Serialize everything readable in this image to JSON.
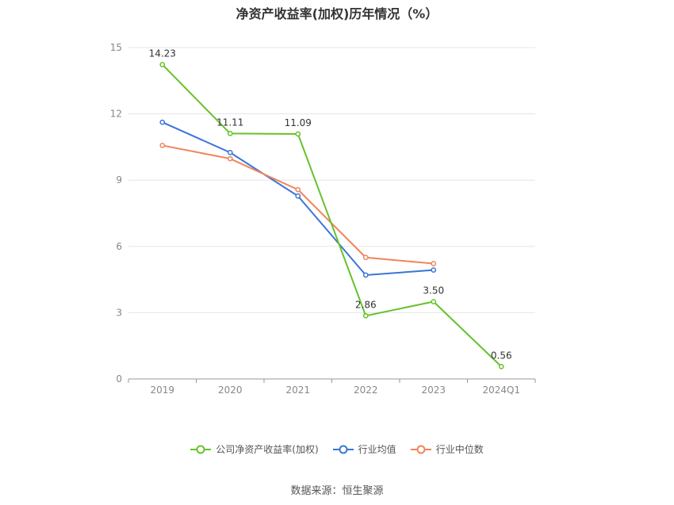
{
  "chart_data": {
    "type": "line",
    "title": "净资产收益率(加权)历年情况（%）",
    "categories": [
      "2019",
      "2020",
      "2021",
      "2022",
      "2023",
      "2024Q1"
    ],
    "ylim": [
      0,
      15
    ],
    "yticks": [
      "0",
      "3",
      "6",
      "9",
      "12",
      "15"
    ],
    "grid": true,
    "legend_position": "bottom",
    "series": [
      {
        "name": "公司净资产收益率(加权)",
        "color": "#66c22b",
        "values": [
          14.23,
          11.11,
          11.09,
          2.86,
          3.5,
          0.56
        ],
        "labels": [
          "14.23",
          "11.11",
          "11.09",
          "2.86",
          "3.50",
          "0.56"
        ]
      },
      {
        "name": "行业均值",
        "color": "#3a75d6",
        "values": [
          11.62,
          10.25,
          8.28,
          4.7,
          4.93,
          null
        ]
      },
      {
        "name": "行业中位数",
        "color": "#f0845a",
        "values": [
          10.57,
          9.97,
          8.57,
          5.5,
          5.22,
          null
        ]
      }
    ]
  },
  "source": "数据来源：恒生聚源"
}
